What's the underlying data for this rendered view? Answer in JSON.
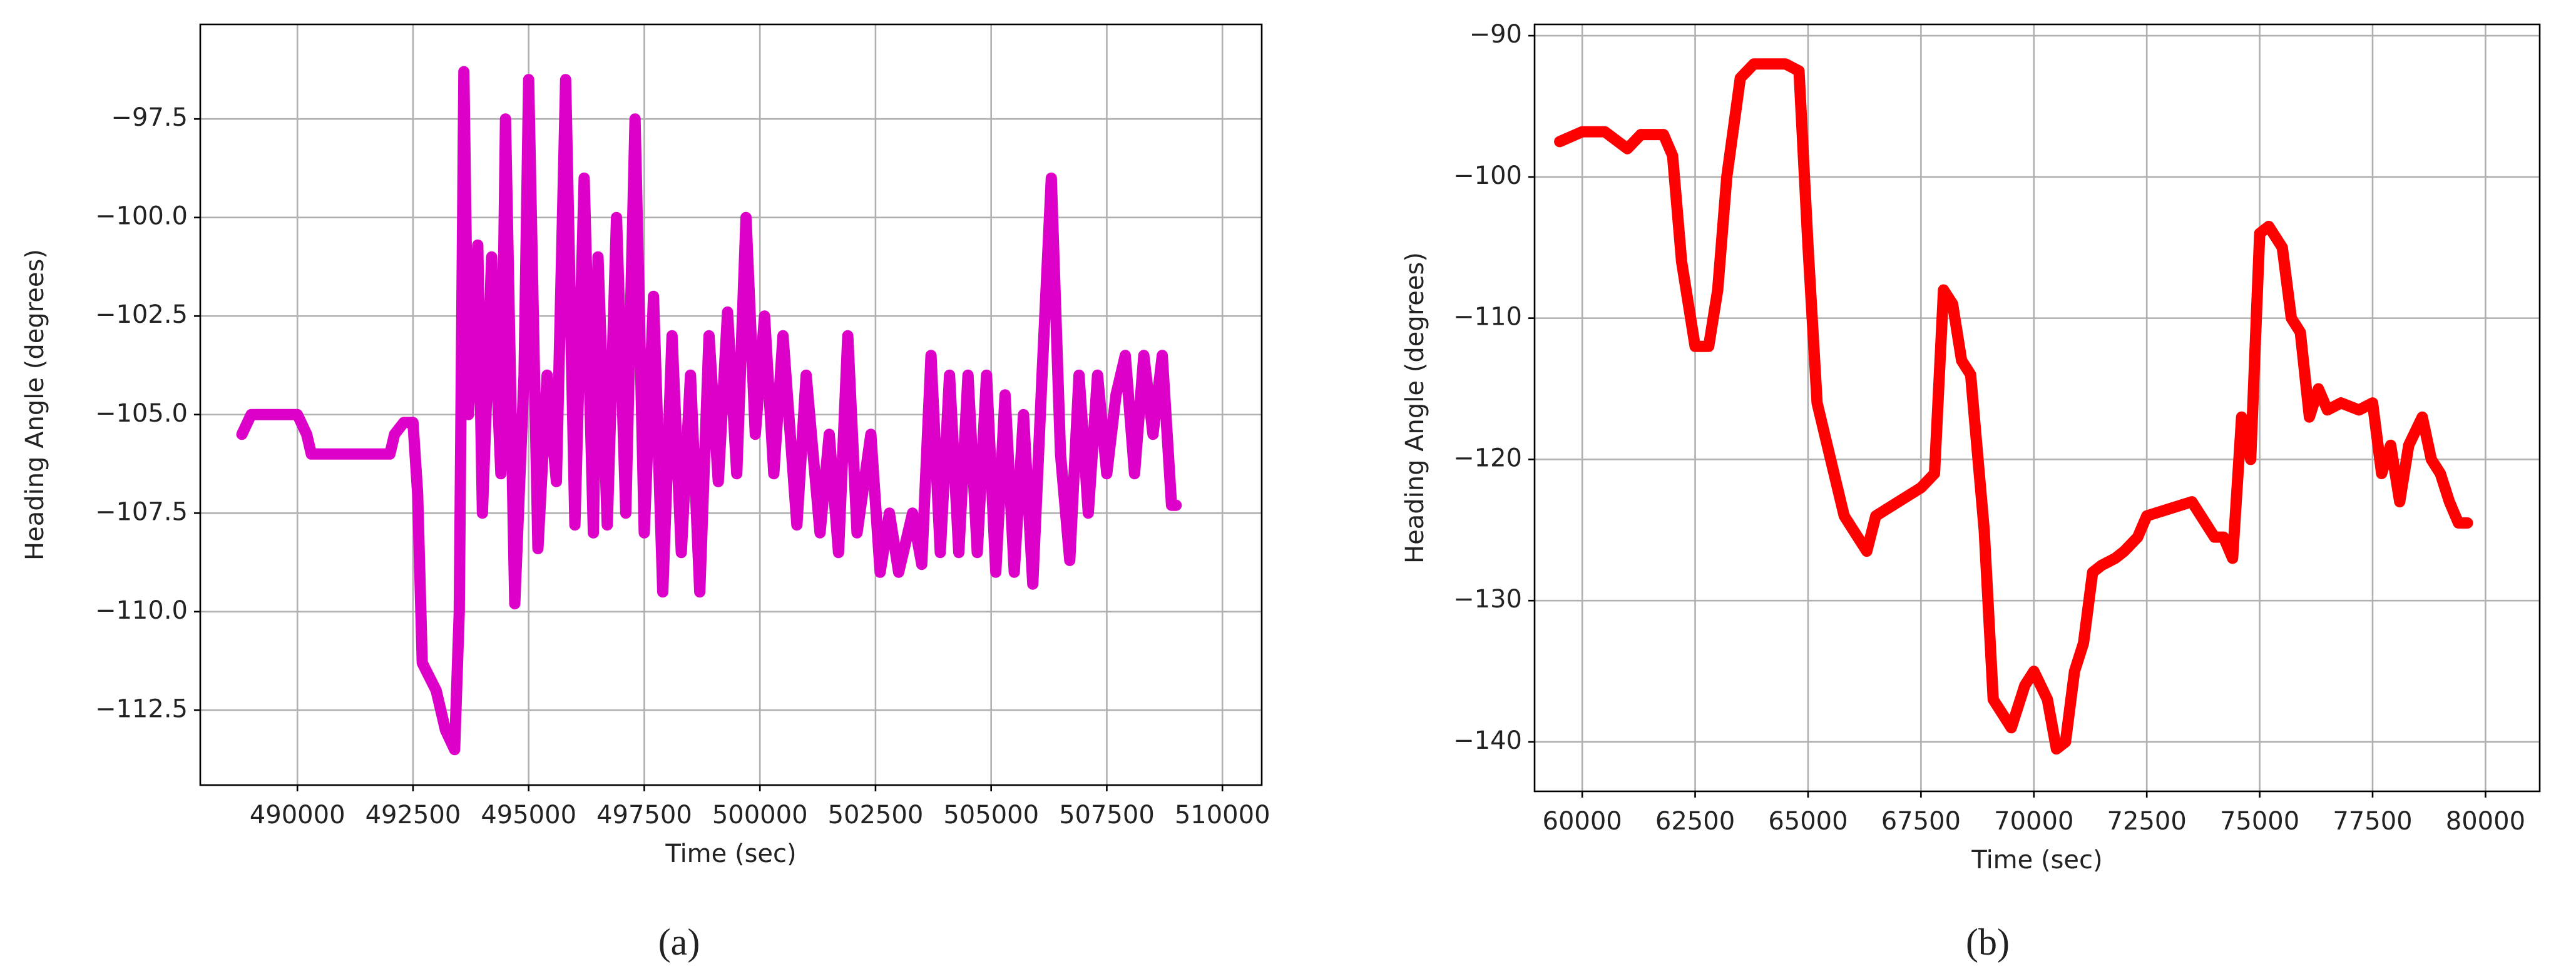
{
  "chart_data": [
    {
      "type": "line",
      "caption": "(a)",
      "x_label": "Time (sec)",
      "y_label": "Heading Angle (degrees)",
      "xlim": [
        487900,
        510850
      ],
      "ylim": [
        -114.4,
        -95.1
      ],
      "xticks": [
        490000,
        492500,
        495000,
        497500,
        500000,
        502500,
        505000,
        507500,
        510000
      ],
      "yticks": [
        {
          "value": -112.5,
          "label": "−112.5"
        },
        {
          "value": -110,
          "label": "−110.0"
        },
        {
          "value": -107.5,
          "label": "−107.5"
        },
        {
          "value": -105,
          "label": "−105.0"
        },
        {
          "value": -102.5,
          "label": "−102.5"
        },
        {
          "value": -100,
          "label": "−100.0"
        },
        {
          "value": -97.5,
          "label": "−97.5"
        }
      ],
      "grid": true,
      "x": [
        488800,
        489000,
        490000,
        490200,
        490300,
        492000,
        492100,
        492300,
        492500,
        492600,
        492700,
        493000,
        493200,
        493400,
        493500,
        493600,
        493700,
        493900,
        494000,
        494200,
        494400,
        494500,
        494700,
        494900,
        495000,
        495200,
        495400,
        495600,
        495800,
        496000,
        496200,
        496400,
        496500,
        496700,
        496900,
        497100,
        497300,
        497500,
        497700,
        497900,
        498100,
        498300,
        498500,
        498700,
        498900,
        499100,
        499300,
        499500,
        499700,
        499900,
        500100,
        500300,
        500500,
        500800,
        501000,
        501300,
        501500,
        501700,
        501900,
        502100,
        502400,
        502600,
        502800,
        503000,
        503300,
        503500,
        503700,
        503900,
        504100,
        504300,
        504500,
        504700,
        504900,
        505100,
        505300,
        505500,
        505700,
        505900,
        506100,
        506300,
        506500,
        506700,
        506900,
        507100,
        507300,
        507500,
        507700,
        507900,
        508100,
        508300,
        508500,
        508700,
        508900,
        509000
      ],
      "series": [
        {
          "name": "heading",
          "color": "#dd00c8",
          "values": [
            -105.5,
            -105,
            -105,
            -105.5,
            -106,
            -106,
            -105.5,
            -105.2,
            -105.2,
            -107,
            -111.3,
            -112,
            -113,
            -113.5,
            -110,
            -96.3,
            -105,
            -100.7,
            -107.5,
            -101,
            -106.5,
            -97.5,
            -109.8,
            -104,
            -96.5,
            -108.4,
            -104,
            -106.7,
            -96.5,
            -107.8,
            -99,
            -108,
            -101,
            -107.8,
            -100,
            -107.5,
            -97.5,
            -108,
            -102,
            -109.5,
            -103,
            -108.5,
            -104,
            -109.5,
            -103,
            -106.7,
            -102.4,
            -106.5,
            -100,
            -105.5,
            -102.5,
            -106.5,
            -103,
            -107.8,
            -104,
            -108,
            -105.5,
            -108.5,
            -103,
            -108,
            -105.5,
            -109,
            -107.5,
            -109,
            -107.5,
            -108.8,
            -103.5,
            -108.5,
            -104,
            -108.5,
            -104,
            -108.5,
            -104,
            -109,
            -104.5,
            -109,
            -105,
            -109.3,
            -104,
            -99,
            -106,
            -108.7,
            -104,
            -107.5,
            -104,
            -106.5,
            -104.5,
            -103.5,
            -106.5,
            -103.5,
            -105.5,
            -103.5,
            -107.3,
            -107.3
          ]
        }
      ]
    },
    {
      "type": "line",
      "caption": "(b)",
      "x_label": "Time (sec)",
      "y_label": "Heading Angle (degrees)",
      "xlim": [
        58945,
        81200
      ],
      "ylim": [
        -143.5,
        -89.2
      ],
      "xticks": [
        60000,
        62500,
        65000,
        67500,
        70000,
        72500,
        75000,
        77500,
        80000
      ],
      "yticks": [
        {
          "value": -140,
          "label": "−140"
        },
        {
          "value": -130,
          "label": "−130"
        },
        {
          "value": -120,
          "label": "−120"
        },
        {
          "value": -110,
          "label": "−110"
        },
        {
          "value": -100,
          "label": "−100"
        },
        {
          "value": -90,
          "label": "−90"
        }
      ],
      "grid": true,
      "x": [
        59500,
        60000,
        60500,
        61000,
        61300,
        61800,
        62000,
        62200,
        62500,
        62800,
        63000,
        63200,
        63500,
        63800,
        64500,
        64800,
        65000,
        65200,
        65500,
        65800,
        66000,
        66300,
        66500,
        67000,
        67500,
        67800,
        68000,
        68200,
        68400,
        68600,
        68900,
        69100,
        69300,
        69500,
        69800,
        70000,
        70300,
        70500,
        70700,
        70900,
        71100,
        71300,
        71500,
        71800,
        72000,
        72300,
        72500,
        73000,
        73500,
        74000,
        74200,
        74400,
        74600,
        74800,
        75000,
        75200,
        75500,
        75700,
        75900,
        76100,
        76300,
        76500,
        76800,
        77200,
        77500,
        77700,
        77900,
        78100,
        78300,
        78600,
        78800,
        79000,
        79200,
        79400,
        79600
      ],
      "series": [
        {
          "name": "heading",
          "color": "#ff0000",
          "values": [
            -97.5,
            -96.8,
            -96.8,
            -98,
            -97,
            -97,
            -98.5,
            -106,
            -112,
            -112,
            -108,
            -100,
            -93,
            -92,
            -92,
            -92.5,
            -105,
            -116,
            -120,
            -124,
            -125,
            -126.5,
            -124,
            -123,
            -122,
            -121,
            -108,
            -109,
            -113,
            -114,
            -125,
            -137,
            -138,
            -139,
            -136,
            -135,
            -137,
            -140.5,
            -140,
            -135,
            -133,
            -128,
            -127.5,
            -127,
            -126.5,
            -125.5,
            -124,
            -123.5,
            -123,
            -125.5,
            -125.5,
            -127,
            -117,
            -120,
            -104,
            -103.5,
            -105,
            -110,
            -111,
            -117,
            -115,
            -116.5,
            -116,
            -116.5,
            -116,
            -121,
            -119,
            -123,
            -119,
            -117,
            -120,
            -121,
            -123,
            -124.5,
            -124.5
          ]
        }
      ]
    }
  ]
}
